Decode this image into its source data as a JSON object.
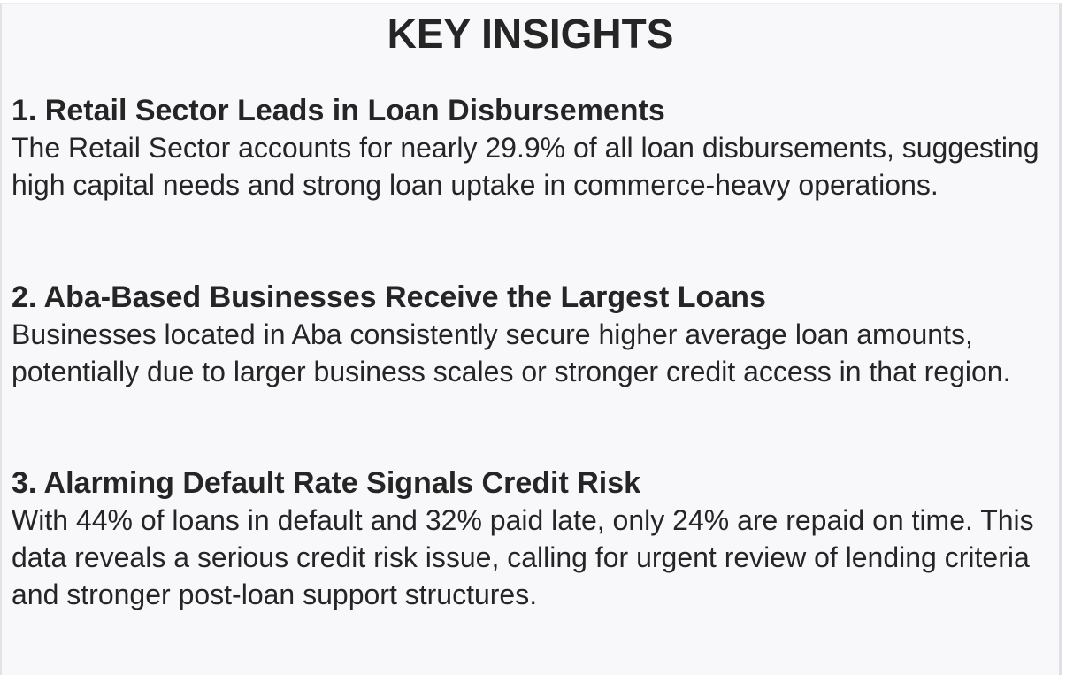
{
  "title": "KEY INSIGHTS",
  "insights": [
    {
      "heading": "1. Retail Sector Leads in Loan Disbursements",
      "body": "The Retail Sector accounts for nearly 29.9% of all loan disbursements, suggesting high capital needs and strong loan uptake in commerce-heavy operations."
    },
    {
      "heading": "2. Aba-Based Businesses Receive the Largest Loans",
      "body": "Businesses located in Aba consistently secure higher average loan amounts, potentially due to larger business scales or stronger credit access in that region."
    },
    {
      "heading": "3. Alarming Default Rate Signals Credit Risk",
      "body": "With 44% of loans in default and 32% paid late, only 24% are repaid on time. This data reveals a serious credit risk issue, calling for urgent review of lending criteria and stronger post-loan support structures."
    }
  ]
}
